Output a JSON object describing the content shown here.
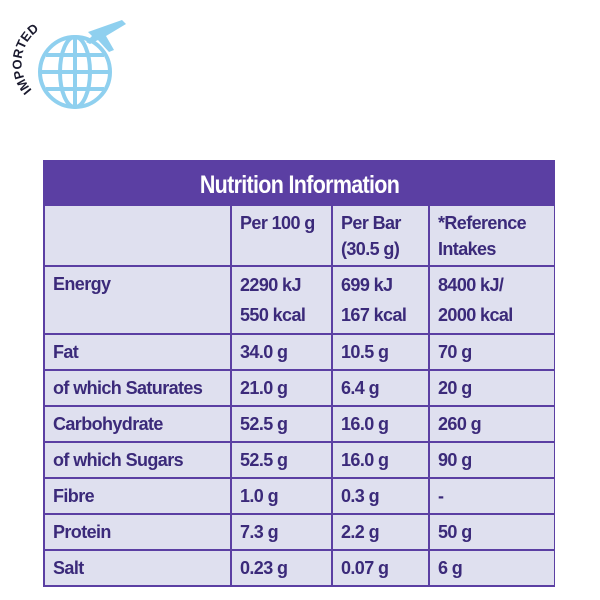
{
  "badge": {
    "label": "IMPORTED"
  },
  "table": {
    "title": "Nutrition Information",
    "columns": [
      "Per 100 g",
      "Per Bar (30.5 g)",
      "*Reference Intakes"
    ],
    "rows": [
      {
        "label": "Energy",
        "values": [
          [
            "2290 kJ",
            "550 kcal"
          ],
          [
            "699 kJ",
            "167 kcal"
          ],
          [
            "8400 kJ/",
            "2000 kcal"
          ]
        ]
      },
      {
        "label": "Fat",
        "values": [
          "34.0 g",
          "10.5 g",
          "70 g"
        ]
      },
      {
        "label": "of which Saturates",
        "values": [
          "21.0 g",
          "6.4 g",
          "20 g"
        ]
      },
      {
        "label": "Carbohydrate",
        "values": [
          "52.5 g",
          "16.0 g",
          "260 g"
        ]
      },
      {
        "label": "of which Sugars",
        "values": [
          "52.5 g",
          "16.0 g",
          "90 g"
        ]
      },
      {
        "label": "Fibre",
        "values": [
          "1.0 g",
          "0.3 g",
          "-"
        ]
      },
      {
        "label": "Protein",
        "values": [
          "7.3 g",
          "2.2 g",
          "50 g"
        ]
      },
      {
        "label": "Salt",
        "values": [
          "0.23 g",
          "0.07 g",
          "6 g"
        ]
      }
    ]
  }
}
